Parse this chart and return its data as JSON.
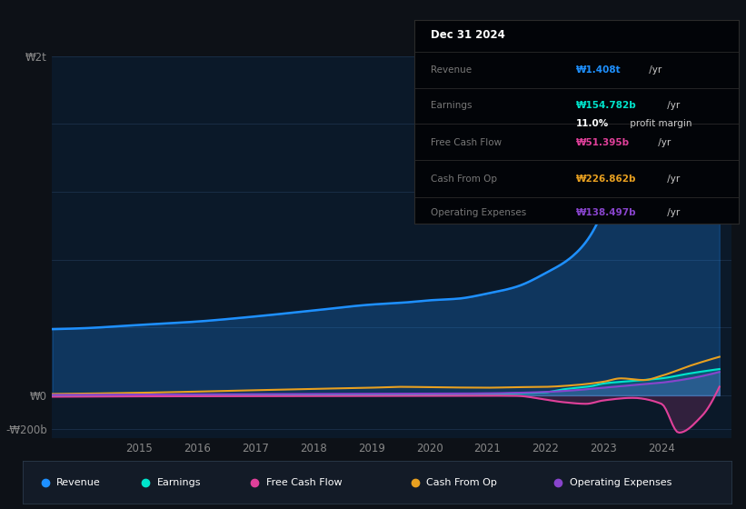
{
  "background_color": "#0d1117",
  "chart_bg_color": "#0b1929",
  "title": "Dec 31 2024",
  "revenue_color": "#1e90ff",
  "earnings_color": "#00e5cc",
  "free_cash_flow_color": "#e0409a",
  "cash_from_op_color": "#e8a020",
  "operating_expenses_color": "#8844cc",
  "ylabel_top": "₩2t",
  "ylabel_zero": "₩0",
  "ylabel_bottom": "-₩200b",
  "x_ticks": [
    2015,
    2016,
    2017,
    2018,
    2019,
    2020,
    2021,
    2022,
    2023,
    2024
  ],
  "info_box": {
    "date": "Dec 31 2024",
    "revenue_label": "Revenue",
    "revenue_value": "₩1.408t",
    "revenue_suffix": " /yr",
    "earnings_label": "Earnings",
    "earnings_value": "₩154.782b",
    "earnings_suffix": " /yr",
    "profit_margin": "11.0%",
    "profit_margin_suffix": " profit margin",
    "fcf_label": "Free Cash Flow",
    "fcf_value": "₩51.395b",
    "fcf_suffix": " /yr",
    "cfo_label": "Cash From Op",
    "cfo_value": "₩226.862b",
    "cfo_suffix": " /yr",
    "opex_label": "Operating Expenses",
    "opex_value": "₩138.497b",
    "opex_suffix": " /yr"
  },
  "legend_items": [
    "Revenue",
    "Earnings",
    "Free Cash Flow",
    "Cash From Op",
    "Operating Expenses"
  ]
}
